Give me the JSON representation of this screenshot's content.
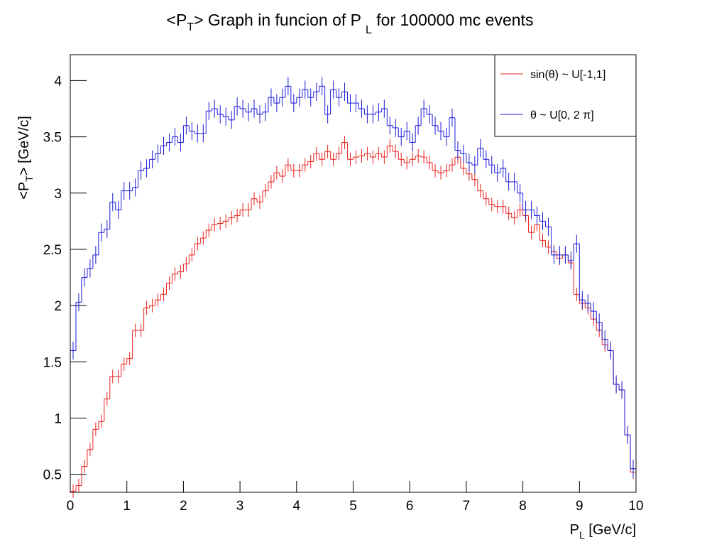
{
  "chart_data": {
    "type": "histogram",
    "title": [
      "<P",
      "T",
      "> Graph in funcion of P ",
      "L",
      " for 100000 mc events"
    ],
    "x_label": [
      "P",
      "L",
      " [GeV/c]"
    ],
    "y_label": [
      "<P",
      "T",
      "> [GeV/c]"
    ],
    "bins": [
      0,
      0.1,
      0.2,
      0.3,
      0.4,
      0.5,
      0.6,
      0.7,
      0.8,
      0.9,
      1,
      1.1,
      1.2,
      1.3,
      1.4,
      1.5,
      1.6,
      1.7,
      1.8,
      1.9,
      2,
      2.1,
      2.2,
      2.3,
      2.4,
      2.5,
      2.6,
      2.7,
      2.8,
      2.9,
      3,
      3.1,
      3.2,
      3.3,
      3.4,
      3.5,
      3.6,
      3.7,
      3.8,
      3.9,
      4,
      4.1,
      4.2,
      4.3,
      4.4,
      4.5,
      4.6,
      4.7,
      4.8,
      4.9,
      5,
      5.1,
      5.2,
      5.3,
      5.4,
      5.5,
      5.6,
      5.7,
      5.8,
      5.9,
      6,
      6.1,
      6.2,
      6.3,
      6.4,
      6.5,
      6.6,
      6.7,
      6.8,
      6.9,
      7,
      7.1,
      7.2,
      7.3,
      7.4,
      7.5,
      7.6,
      7.7,
      7.8,
      7.9,
      8,
      8.1,
      8.2,
      8.3,
      8.4,
      8.5,
      8.6,
      8.7,
      8.8,
      8.9,
      9,
      9.1,
      9.2,
      9.3,
      9.4,
      9.5,
      9.6,
      9.7,
      9.8,
      9.9,
      10
    ],
    "series": [
      {
        "name": "sin(θ) ~ U[-1,1]",
        "color": "#e8211d",
        "error": 0.06,
        "values": [
          0.35,
          0.4,
          0.57,
          0.72,
          0.9,
          0.97,
          1.17,
          1.37,
          1.37,
          1.48,
          1.53,
          1.78,
          1.78,
          1.98,
          2.0,
          2.05,
          2.1,
          2.2,
          2.28,
          2.3,
          2.37,
          2.45,
          2.55,
          2.6,
          2.67,
          2.72,
          2.73,
          2.75,
          2.78,
          2.8,
          2.85,
          2.85,
          2.95,
          2.92,
          3.02,
          3.1,
          3.18,
          3.15,
          3.25,
          3.2,
          3.2,
          3.25,
          3.28,
          3.35,
          3.3,
          3.37,
          3.3,
          3.35,
          3.45,
          3.3,
          3.32,
          3.33,
          3.35,
          3.32,
          3.35,
          3.32,
          3.42,
          3.37,
          3.3,
          3.27,
          3.3,
          3.33,
          3.32,
          3.27,
          3.2,
          3.18,
          3.2,
          3.25,
          3.32,
          3.22,
          3.17,
          3.12,
          3.02,
          2.95,
          2.9,
          2.88,
          2.88,
          2.82,
          2.78,
          2.85,
          2.8,
          2.65,
          2.72,
          2.58,
          2.52,
          2.48,
          2.42,
          2.45,
          2.38,
          2.1,
          2.02,
          1.98,
          1.88,
          1.78,
          1.65,
          1.6,
          1.3,
          1.25,
          0.85,
          0.52
        ]
      },
      {
        "name": "θ ~ U[0, 2 π]",
        "color": "#1a1ad8",
        "error": 0.08,
        "values": [
          1.6,
          2.03,
          2.25,
          2.33,
          2.45,
          2.65,
          2.68,
          2.92,
          2.85,
          3.02,
          3.02,
          3.05,
          3.2,
          3.22,
          3.3,
          3.35,
          3.42,
          3.45,
          3.5,
          3.45,
          3.6,
          3.55,
          3.53,
          3.53,
          3.73,
          3.75,
          3.7,
          3.68,
          3.65,
          3.77,
          3.75,
          3.72,
          3.75,
          3.7,
          3.72,
          3.85,
          3.8,
          3.85,
          3.95,
          3.8,
          3.85,
          3.92,
          3.85,
          3.9,
          3.95,
          3.7,
          3.92,
          3.85,
          3.9,
          3.8,
          3.8,
          3.75,
          3.7,
          3.7,
          3.72,
          3.75,
          3.6,
          3.58,
          3.5,
          3.55,
          3.45,
          3.6,
          3.75,
          3.7,
          3.6,
          3.55,
          3.5,
          3.67,
          3.38,
          3.35,
          3.27,
          3.25,
          3.4,
          3.3,
          3.25,
          3.18,
          3.22,
          3.1,
          3.1,
          3.0,
          2.85,
          2.85,
          2.8,
          2.75,
          2.7,
          2.45,
          2.45,
          2.45,
          2.4,
          2.55,
          2.05,
          2.02,
          1.95,
          1.85,
          1.7,
          1.6,
          1.3,
          1.25,
          0.85,
          0.55
        ]
      }
    ],
    "xlim": [
      0,
      10
    ],
    "xticks": [
      0,
      1,
      2,
      3,
      4,
      5,
      6,
      7,
      8,
      9,
      10
    ],
    "ylim": [
      0.34,
      4.23
    ],
    "yticks": [
      0.5,
      1,
      1.5,
      2,
      2.5,
      3,
      3.5,
      4
    ],
    "legend": "top-right"
  }
}
